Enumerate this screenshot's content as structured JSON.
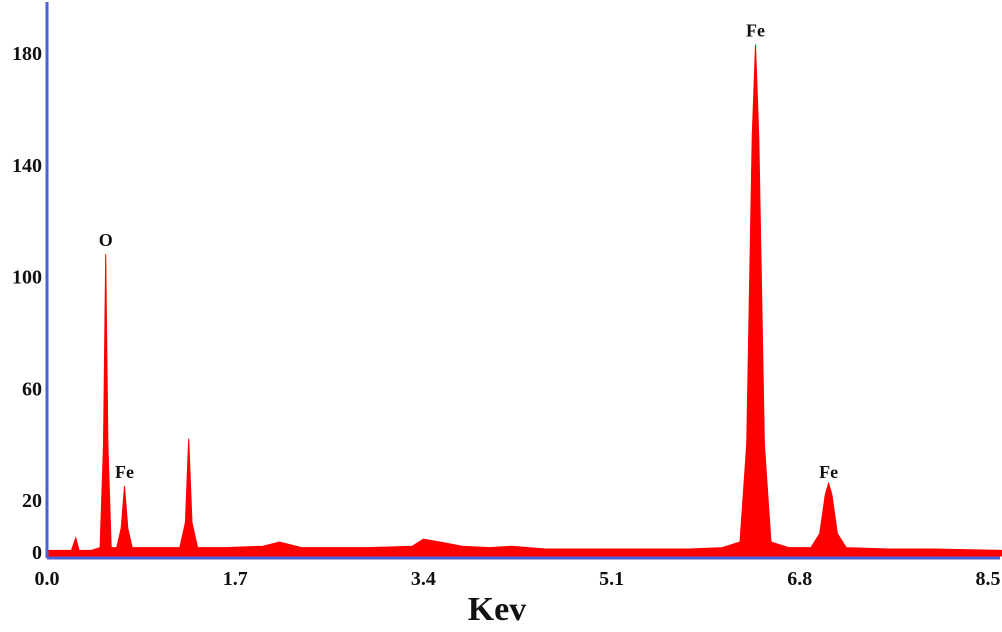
{
  "chart_data": {
    "type": "area",
    "title": "",
    "xlabel": "Kev",
    "ylabel": "",
    "xlim": [
      0.0,
      8.65
    ],
    "ylim": [
      0,
      194
    ],
    "x_ticks": [
      "0.0",
      "1.7",
      "3.4",
      "5.1",
      "6.8",
      "8.5"
    ],
    "y_ticks": [
      "0",
      "20",
      "60",
      "100",
      "140",
      "180"
    ],
    "grid": false,
    "colors": {
      "fill": "#ff0000",
      "axis": "#4a5fd8",
      "text": "#111111"
    },
    "peak_labels": [
      {
        "label": "O",
        "x": 0.53,
        "y": 108
      },
      {
        "label": "Fe",
        "x": 0.7,
        "y": 25
      },
      {
        "label": "Fe",
        "x": 6.4,
        "y": 183
      },
      {
        "label": "Fe",
        "x": 7.06,
        "y": 25
      }
    ],
    "series": [
      {
        "values": [
          [
            0.0,
            2
          ],
          [
            0.14,
            2
          ],
          [
            0.22,
            2
          ],
          [
            0.26,
            6.5
          ],
          [
            0.29,
            2
          ],
          [
            0.4,
            2
          ],
          [
            0.48,
            3
          ],
          [
            0.51,
            40
          ],
          [
            0.53,
            108
          ],
          [
            0.55,
            40
          ],
          [
            0.58,
            3
          ],
          [
            0.63,
            3
          ],
          [
            0.67,
            10
          ],
          [
            0.7,
            25
          ],
          [
            0.73,
            10
          ],
          [
            0.77,
            3
          ],
          [
            0.9,
            3
          ],
          [
            1.2,
            3
          ],
          [
            1.25,
            12
          ],
          [
            1.28,
            42
          ],
          [
            1.31,
            12
          ],
          [
            1.36,
            3
          ],
          [
            1.6,
            3
          ],
          [
            1.95,
            3.5
          ],
          [
            2.1,
            5
          ],
          [
            2.3,
            3
          ],
          [
            2.6,
            3
          ],
          [
            2.9,
            3
          ],
          [
            3.3,
            3.5
          ],
          [
            3.4,
            6
          ],
          [
            3.55,
            5
          ],
          [
            3.75,
            3.5
          ],
          [
            4.0,
            3
          ],
          [
            4.2,
            3.5
          ],
          [
            4.5,
            2.5
          ],
          [
            5.0,
            2.5
          ],
          [
            5.5,
            2.5
          ],
          [
            5.8,
            2.5
          ],
          [
            6.1,
            3
          ],
          [
            6.26,
            5
          ],
          [
            6.32,
            40
          ],
          [
            6.37,
            150
          ],
          [
            6.4,
            183
          ],
          [
            6.43,
            150
          ],
          [
            6.48,
            40
          ],
          [
            6.54,
            5
          ],
          [
            6.7,
            3
          ],
          [
            6.9,
            3
          ],
          [
            6.98,
            8
          ],
          [
            7.03,
            22
          ],
          [
            7.06,
            26
          ],
          [
            7.09,
            22
          ],
          [
            7.14,
            8
          ],
          [
            7.22,
            3
          ],
          [
            7.6,
            2.5
          ],
          [
            8.0,
            2.5
          ],
          [
            8.65,
            2
          ]
        ]
      }
    ]
  }
}
